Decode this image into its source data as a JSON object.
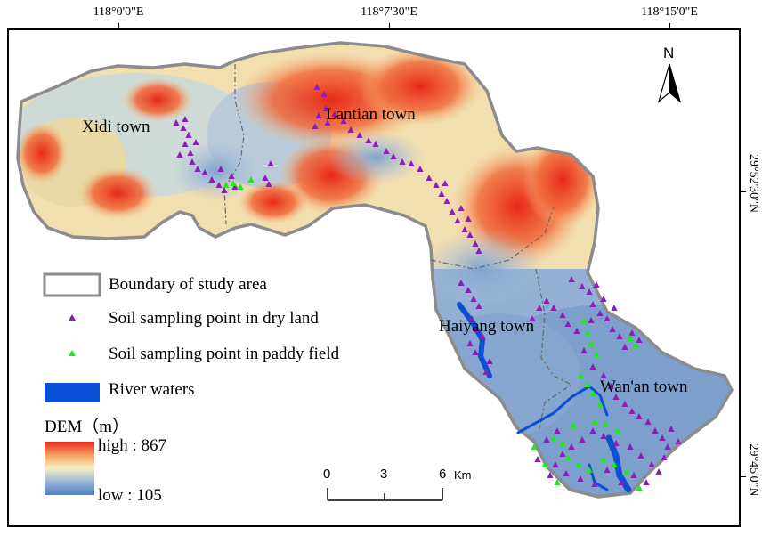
{
  "coordinates": {
    "top": [
      "118°0'0\"E",
      "118°7'30\"E",
      "118°15'0\"E"
    ],
    "right": [
      "29°52'30\"N",
      "29°45'0\"N"
    ]
  },
  "towns": {
    "xidi": "Xidi town",
    "lantian": "Lantian town",
    "haiyang": "Haiyang town",
    "wanan": "Wan'an town"
  },
  "legend": {
    "boundary": "Boundary of study area",
    "dry_land": "Soil sampling point in dry land",
    "paddy_field": "Soil sampling point in paddy field",
    "river": "River waters",
    "dem_title": "DEM（m）",
    "high": "high : 867",
    "low": "low : 105"
  },
  "north": "N",
  "scale": {
    "ticks": [
      "0",
      "3",
      "6"
    ],
    "unit": "Km"
  },
  "colors": {
    "dry_land": "#8b1fb5",
    "paddy_field": "#22e622",
    "river": "#0b4fd8",
    "boundary": "#8c8c8c",
    "dem_high": "#e8281a",
    "dem_mid": "#f7f1c2",
    "dem_low": "#4e7fc0"
  }
}
